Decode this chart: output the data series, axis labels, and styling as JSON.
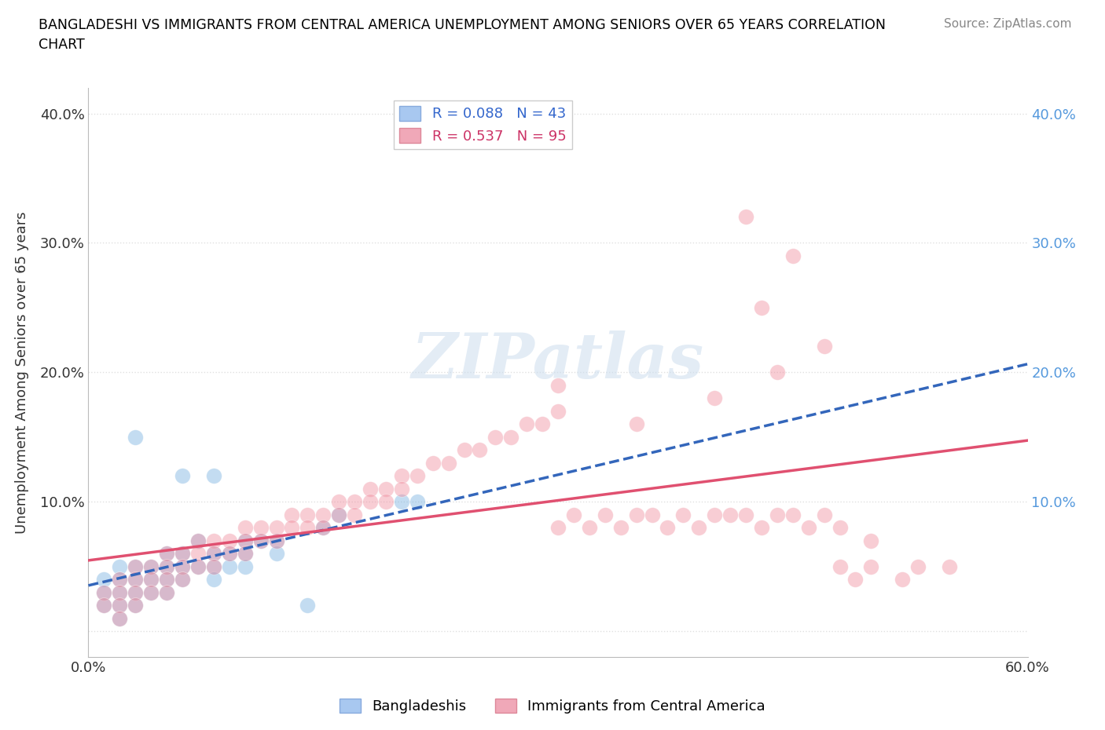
{
  "title": "BANGLADESHI VS IMMIGRANTS FROM CENTRAL AMERICA UNEMPLOYMENT AMONG SENIORS OVER 65 YEARS CORRELATION\nCHART",
  "source": "Source: ZipAtlas.com",
  "ylabel": "Unemployment Among Seniors over 65 years",
  "xlim": [
    0.0,
    0.6
  ],
  "ylim": [
    -0.02,
    0.42
  ],
  "xticks": [
    0.0,
    0.1,
    0.2,
    0.3,
    0.4,
    0.5,
    0.6
  ],
  "xticklabels": [
    "0.0%",
    "",
    "",
    "",
    "",
    "",
    "60.0%"
  ],
  "yticks": [
    0.0,
    0.1,
    0.2,
    0.3,
    0.4
  ],
  "yticklabels": [
    "",
    "10.0%",
    "20.0%",
    "30.0%",
    "40.0%"
  ],
  "right_yticks": [
    0.1,
    0.2,
    0.3,
    0.4
  ],
  "right_yticklabels": [
    "10.0%",
    "20.0%",
    "30.0%",
    "40.0%"
  ],
  "legend_entries": [
    {
      "label": "R = 0.088   N = 43",
      "color": "#a8c8f0"
    },
    {
      "label": "R = 0.537   N = 95",
      "color": "#f0a8b8"
    }
  ],
  "blue_color": "#7ab3e0",
  "pink_color": "#f090a0",
  "blue_line_color": "#3366bb",
  "pink_line_color": "#e05070",
  "blue_scatter": [
    [
      0.01,
      0.04
    ],
    [
      0.01,
      0.03
    ],
    [
      0.01,
      0.02
    ],
    [
      0.02,
      0.05
    ],
    [
      0.02,
      0.04
    ],
    [
      0.02,
      0.03
    ],
    [
      0.02,
      0.02
    ],
    [
      0.02,
      0.01
    ],
    [
      0.03,
      0.05
    ],
    [
      0.03,
      0.04
    ],
    [
      0.03,
      0.03
    ],
    [
      0.03,
      0.02
    ],
    [
      0.04,
      0.05
    ],
    [
      0.04,
      0.04
    ],
    [
      0.04,
      0.03
    ],
    [
      0.05,
      0.06
    ],
    [
      0.05,
      0.05
    ],
    [
      0.05,
      0.04
    ],
    [
      0.05,
      0.03
    ],
    [
      0.06,
      0.06
    ],
    [
      0.06,
      0.05
    ],
    [
      0.06,
      0.04
    ],
    [
      0.07,
      0.07
    ],
    [
      0.07,
      0.05
    ],
    [
      0.08,
      0.06
    ],
    [
      0.08,
      0.05
    ],
    [
      0.08,
      0.04
    ],
    [
      0.09,
      0.06
    ],
    [
      0.09,
      0.05
    ],
    [
      0.1,
      0.07
    ],
    [
      0.1,
      0.06
    ],
    [
      0.1,
      0.05
    ],
    [
      0.11,
      0.07
    ],
    [
      0.12,
      0.07
    ],
    [
      0.12,
      0.06
    ],
    [
      0.03,
      0.15
    ],
    [
      0.06,
      0.12
    ],
    [
      0.08,
      0.12
    ],
    [
      0.2,
      0.1
    ],
    [
      0.21,
      0.1
    ],
    [
      0.15,
      0.08
    ],
    [
      0.16,
      0.09
    ],
    [
      0.14,
      0.02
    ]
  ],
  "pink_scatter": [
    [
      0.01,
      0.03
    ],
    [
      0.01,
      0.02
    ],
    [
      0.02,
      0.04
    ],
    [
      0.02,
      0.03
    ],
    [
      0.02,
      0.02
    ],
    [
      0.02,
      0.01
    ],
    [
      0.03,
      0.05
    ],
    [
      0.03,
      0.04
    ],
    [
      0.03,
      0.03
    ],
    [
      0.03,
      0.02
    ],
    [
      0.04,
      0.05
    ],
    [
      0.04,
      0.04
    ],
    [
      0.04,
      0.03
    ],
    [
      0.05,
      0.06
    ],
    [
      0.05,
      0.05
    ],
    [
      0.05,
      0.04
    ],
    [
      0.05,
      0.03
    ],
    [
      0.06,
      0.06
    ],
    [
      0.06,
      0.05
    ],
    [
      0.06,
      0.04
    ],
    [
      0.07,
      0.07
    ],
    [
      0.07,
      0.06
    ],
    [
      0.07,
      0.05
    ],
    [
      0.08,
      0.07
    ],
    [
      0.08,
      0.06
    ],
    [
      0.08,
      0.05
    ],
    [
      0.09,
      0.07
    ],
    [
      0.09,
      0.06
    ],
    [
      0.1,
      0.08
    ],
    [
      0.1,
      0.07
    ],
    [
      0.1,
      0.06
    ],
    [
      0.11,
      0.08
    ],
    [
      0.11,
      0.07
    ],
    [
      0.12,
      0.08
    ],
    [
      0.12,
      0.07
    ],
    [
      0.13,
      0.09
    ],
    [
      0.13,
      0.08
    ],
    [
      0.14,
      0.09
    ],
    [
      0.14,
      0.08
    ],
    [
      0.15,
      0.09
    ],
    [
      0.15,
      0.08
    ],
    [
      0.16,
      0.1
    ],
    [
      0.16,
      0.09
    ],
    [
      0.17,
      0.1
    ],
    [
      0.17,
      0.09
    ],
    [
      0.18,
      0.11
    ],
    [
      0.18,
      0.1
    ],
    [
      0.19,
      0.11
    ],
    [
      0.19,
      0.1
    ],
    [
      0.2,
      0.12
    ],
    [
      0.2,
      0.11
    ],
    [
      0.21,
      0.12
    ],
    [
      0.22,
      0.13
    ],
    [
      0.23,
      0.13
    ],
    [
      0.24,
      0.14
    ],
    [
      0.25,
      0.14
    ],
    [
      0.26,
      0.15
    ],
    [
      0.27,
      0.15
    ],
    [
      0.28,
      0.16
    ],
    [
      0.29,
      0.16
    ],
    [
      0.3,
      0.17
    ],
    [
      0.3,
      0.08
    ],
    [
      0.31,
      0.09
    ],
    [
      0.32,
      0.08
    ],
    [
      0.33,
      0.09
    ],
    [
      0.34,
      0.08
    ],
    [
      0.35,
      0.09
    ],
    [
      0.36,
      0.09
    ],
    [
      0.37,
      0.08
    ],
    [
      0.38,
      0.09
    ],
    [
      0.39,
      0.08
    ],
    [
      0.4,
      0.09
    ],
    [
      0.41,
      0.09
    ],
    [
      0.42,
      0.09
    ],
    [
      0.43,
      0.08
    ],
    [
      0.44,
      0.09
    ],
    [
      0.45,
      0.09
    ],
    [
      0.46,
      0.08
    ],
    [
      0.47,
      0.09
    ],
    [
      0.48,
      0.08
    ],
    [
      0.43,
      0.25
    ],
    [
      0.45,
      0.29
    ],
    [
      0.47,
      0.22
    ],
    [
      0.44,
      0.2
    ],
    [
      0.3,
      0.19
    ],
    [
      0.35,
      0.16
    ],
    [
      0.4,
      0.18
    ],
    [
      0.42,
      0.32
    ],
    [
      0.5,
      0.05
    ],
    [
      0.52,
      0.04
    ],
    [
      0.5,
      0.07
    ],
    [
      0.53,
      0.05
    ],
    [
      0.55,
      0.05
    ],
    [
      0.48,
      0.05
    ],
    [
      0.49,
      0.04
    ]
  ],
  "watermark": "ZIPatlas",
  "background_color": "#ffffff",
  "grid_color": "#e0e0e0"
}
